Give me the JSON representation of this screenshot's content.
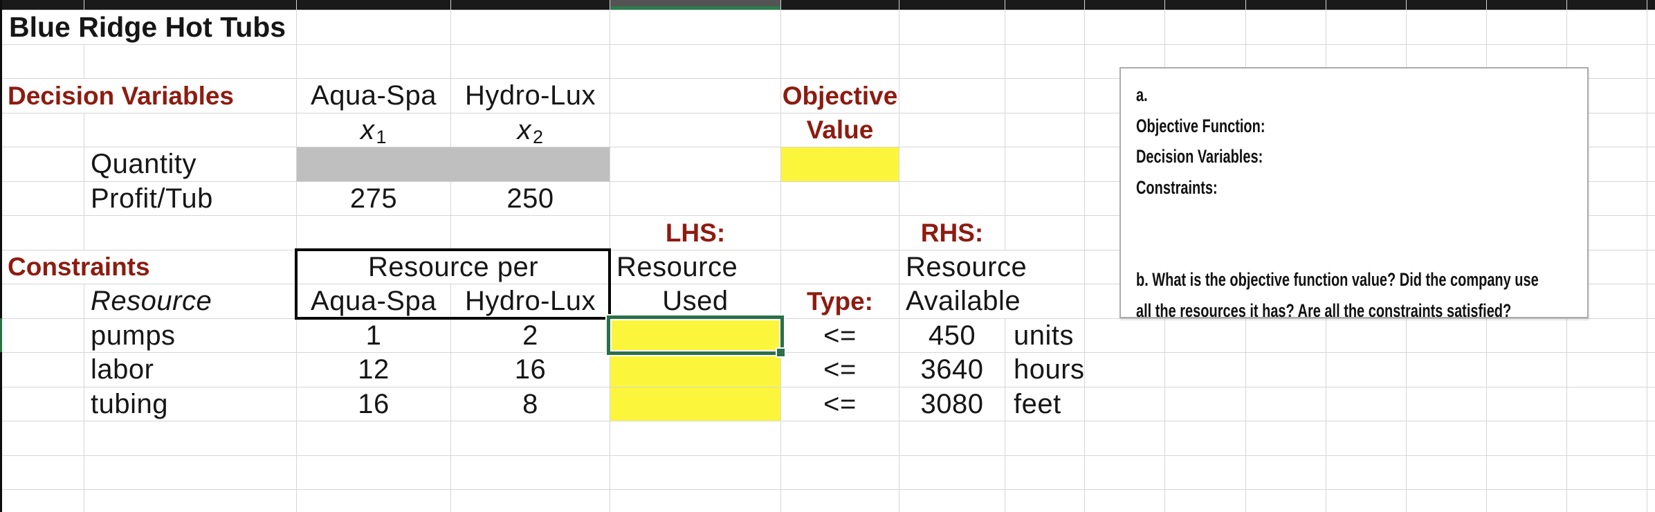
{
  "colors": {
    "accent-red": "#8e1b10",
    "fill-yellow": "#fbf63c",
    "fill-gray": "#bfbfbf",
    "selection-green": "#2a7049",
    "topbar-green": "#2e7b4e",
    "gridline": "#d6d6d6"
  },
  "sheet": {
    "title": "Blue Ridge Hot Tubs",
    "decision_label": "Decision Variables",
    "product_col1": "Aqua-Spa",
    "product_col2": "Hydro-Lux",
    "var1_base": "x",
    "var1_sub": "1",
    "var2_base": "x",
    "var2_sub": "2",
    "objective_line1": "Objective",
    "objective_line2": "Value",
    "quantity_label": "Quantity",
    "profit_label": "Profit/Tub",
    "profit_values": {
      "aqua_spa": "275",
      "hydro_lux": "250"
    },
    "lhs_label": "LHS:",
    "rhs_label": "RHS:",
    "constraints_label": "Constraints",
    "resource_per_label": "Resource per",
    "constraint_col1": "Aqua-Spa",
    "constraint_col2": "Hydro-Lux",
    "resource_row_header": "Resource",
    "lhs_header_line1": "Resource",
    "lhs_header_line2": "Used",
    "type_header": "Type:",
    "rhs_header_line1": "Resource",
    "rhs_header_line2": "Available",
    "constraint_rows": [
      {
        "resource": "pumps",
        "aqua_spa": "1",
        "hydro_lux": "2",
        "lhs": "",
        "type": "<=",
        "available": "450",
        "unit": "units"
      },
      {
        "resource": "labor",
        "aqua_spa": "12",
        "hydro_lux": "16",
        "lhs": "",
        "type": "<=",
        "available": "3640",
        "unit": "hours"
      },
      {
        "resource": "tubing",
        "aqua_spa": "16",
        "hydro_lux": "8",
        "lhs": "",
        "type": "<=",
        "available": "3080",
        "unit": "feet"
      }
    ]
  },
  "note_box": {
    "lines": [
      "a.",
      "Objective Function:",
      "Decision Variables:",
      "Constraints:",
      "",
      "",
      "b. What is the objective function value? Did the company use",
      "all the resources it has? Are all the constraints  satisfied?"
    ]
  }
}
